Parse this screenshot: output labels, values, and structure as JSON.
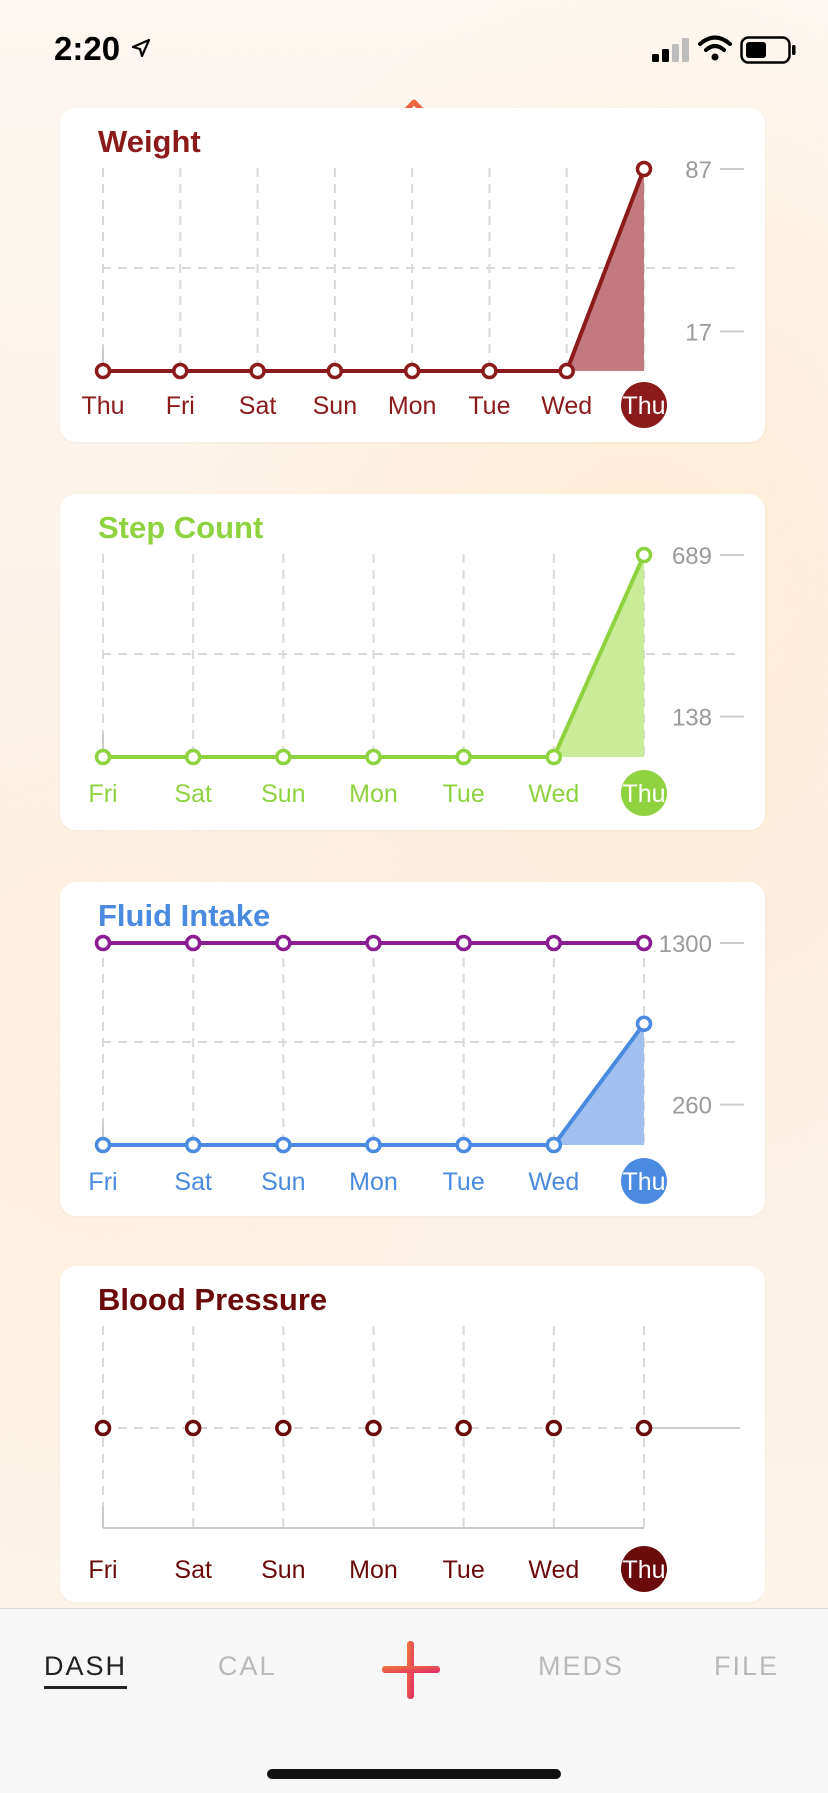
{
  "status": {
    "time": "2:20"
  },
  "days_weight": [
    "Thu",
    "Fri",
    "Sat",
    "Sun",
    "Mon",
    "Tue",
    "Wed",
    "Thu"
  ],
  "days_week": [
    "Fri",
    "Sat",
    "Sun",
    "Mon",
    "Tue",
    "Wed",
    "Thu"
  ],
  "cards": [
    {
      "id": "weight",
      "title": "Weight",
      "color": "#8b1a1a",
      "fill": "#c27a80",
      "days": [
        "Thu",
        "Fri",
        "Sat",
        "Sun",
        "Mon",
        "Tue",
        "Wed",
        "Thu"
      ],
      "ticks": [
        "87",
        "17"
      ],
      "tick_values": [
        87,
        17
      ],
      "series": [
        {
          "values": [
            0,
            0,
            0,
            0,
            0,
            0,
            0,
            87
          ],
          "color": "#8b1a1a",
          "filled": true
        }
      ],
      "ylim": [
        0,
        87
      ]
    },
    {
      "id": "steps",
      "title": "Step Count",
      "color": "#8ed33f",
      "fill": "#c8ec97",
      "days": [
        "Fri",
        "Sat",
        "Sun",
        "Mon",
        "Tue",
        "Wed",
        "Thu"
      ],
      "ticks": [
        "689",
        "138"
      ],
      "tick_values": [
        689,
        138
      ],
      "series": [
        {
          "values": [
            0,
            0,
            0,
            0,
            0,
            0,
            689
          ],
          "color": "#8ed33f",
          "filled": true
        }
      ],
      "ylim": [
        0,
        689
      ]
    },
    {
      "id": "fluid",
      "title": "Fluid Intake",
      "color": "#4a8ae0",
      "fill": "#a1c0ef",
      "days": [
        "Fri",
        "Sat",
        "Sun",
        "Mon",
        "Tue",
        "Wed",
        "Thu"
      ],
      "ticks": [
        "1300",
        "260"
      ],
      "tick_values": [
        1300,
        260
      ],
      "series": [
        {
          "values": [
            1300,
            1300,
            1300,
            1300,
            1300,
            1300,
            1300
          ],
          "color": "#8b1d93",
          "filled": false
        },
        {
          "values": [
            0,
            0,
            0,
            0,
            0,
            0,
            780
          ],
          "color": "#4a8ae0",
          "filled": true
        }
      ],
      "ylim": [
        0,
        1300
      ]
    },
    {
      "id": "bp",
      "title": "Blood Pressure",
      "color": "#6a0a0a",
      "fill": "",
      "days": [
        "Fri",
        "Sat",
        "Sun",
        "Mon",
        "Tue",
        "Wed",
        "Thu"
      ],
      "ticks": [],
      "tick_values": [],
      "series": [
        {
          "values": [
            0,
            0,
            0,
            0,
            0,
            0,
            0
          ],
          "color": "#6a0a0a",
          "filled": false,
          "points_only": true
        }
      ],
      "ylim": [
        -1,
        1
      ]
    }
  ],
  "tabs": [
    {
      "id": "dash",
      "label": "DASH",
      "active": true
    },
    {
      "id": "cal",
      "label": "CAL",
      "active": false
    },
    {
      "id": "meds",
      "label": "MEDS",
      "active": false
    },
    {
      "id": "file",
      "label": "FILE",
      "active": false
    }
  ],
  "chart_data": [
    {
      "type": "area",
      "title": "Weight",
      "categories": [
        "Thu",
        "Fri",
        "Sat",
        "Sun",
        "Mon",
        "Tue",
        "Wed",
        "Thu"
      ],
      "series": [
        {
          "values": [
            0,
            0,
            0,
            0,
            0,
            0,
            0,
            87
          ]
        }
      ],
      "yticks": [
        87,
        17
      ]
    },
    {
      "type": "area",
      "title": "Step Count",
      "categories": [
        "Fri",
        "Sat",
        "Sun",
        "Mon",
        "Tue",
        "Wed",
        "Thu"
      ],
      "series": [
        {
          "values": [
            0,
            0,
            0,
            0,
            0,
            0,
            689
          ]
        }
      ],
      "yticks": [
        689,
        138
      ]
    },
    {
      "type": "line",
      "title": "Fluid Intake",
      "categories": [
        "Fri",
        "Sat",
        "Sun",
        "Mon",
        "Tue",
        "Wed",
        "Thu"
      ],
      "series": [
        {
          "values": [
            1300,
            1300,
            1300,
            1300,
            1300,
            1300,
            1300
          ]
        },
        {
          "values": [
            0,
            0,
            0,
            0,
            0,
            0,
            780
          ]
        }
      ],
      "yticks": [
        1300,
        260
      ]
    },
    {
      "type": "scatter",
      "title": "Blood Pressure",
      "categories": [
        "Fri",
        "Sat",
        "Sun",
        "Mon",
        "Tue",
        "Wed",
        "Thu"
      ],
      "series": [
        {
          "values": [
            0,
            0,
            0,
            0,
            0,
            0,
            0
          ]
        }
      ]
    }
  ]
}
